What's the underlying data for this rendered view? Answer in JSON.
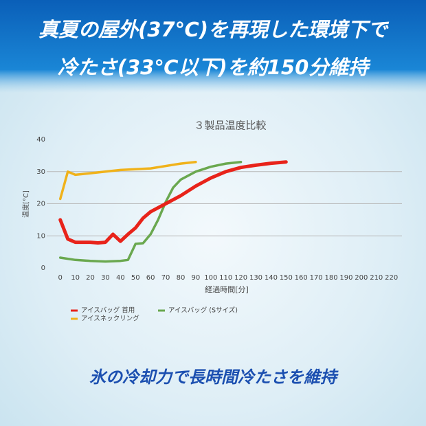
{
  "header": {
    "lines": [
      "真夏の屋外(37℃)を再現した環境下で",
      "冷たさ(33℃以下)を約150分維持"
    ]
  },
  "footer": {
    "text": "氷の冷却力で長時間冷たさを維持"
  },
  "chart_data": {
    "type": "line",
    "title": "３製品温度比較",
    "x_label": "経過時間[分]",
    "y_label": "温度[°C]",
    "xlim": [
      -9,
      227
    ],
    "ylim": [
      0,
      40
    ],
    "xticks": [
      0,
      10,
      20,
      30,
      40,
      50,
      60,
      70,
      80,
      90,
      100,
      110,
      120,
      130,
      140,
      150,
      160,
      170,
      180,
      190,
      200,
      210,
      220
    ],
    "yticks": [
      0,
      10,
      20,
      30,
      40
    ],
    "grid": true,
    "legend": "bottom-left",
    "series": [
      {
        "name": "アイスバッグ 首用",
        "color": "#e8231a",
        "x": [
          0,
          5,
          10,
          20,
          25,
          30,
          35,
          40,
          45,
          50,
          55,
          60,
          70,
          80,
          90,
          100,
          110,
          120,
          130,
          140,
          150
        ],
        "values": [
          15,
          9,
          8,
          8,
          7.8,
          8,
          10.5,
          8.3,
          10.5,
          12.5,
          15.5,
          17.5,
          20,
          22.5,
          25.5,
          28,
          30,
          31.3,
          32,
          32.6,
          33
        ]
      },
      {
        "name": "アイスバッグ (Sサイズ)",
        "color": "#6aa84f",
        "x": [
          0,
          10,
          20,
          30,
          40,
          45,
          50,
          55,
          60,
          65,
          70,
          75,
          80,
          90,
          100,
          110,
          120
        ],
        "values": [
          3.2,
          2.5,
          2.2,
          2,
          2.2,
          2.5,
          7.5,
          7.7,
          10.5,
          15,
          20.5,
          25,
          27.5,
          30,
          31.5,
          32.5,
          33
        ]
      },
      {
        "name": "アイスネックリング",
        "color": "#f0b21a",
        "x": [
          0,
          5,
          10,
          20,
          40,
          60,
          80,
          90
        ],
        "values": [
          21.5,
          30,
          29,
          29.5,
          30.5,
          31,
          32.5,
          33
        ]
      }
    ]
  }
}
